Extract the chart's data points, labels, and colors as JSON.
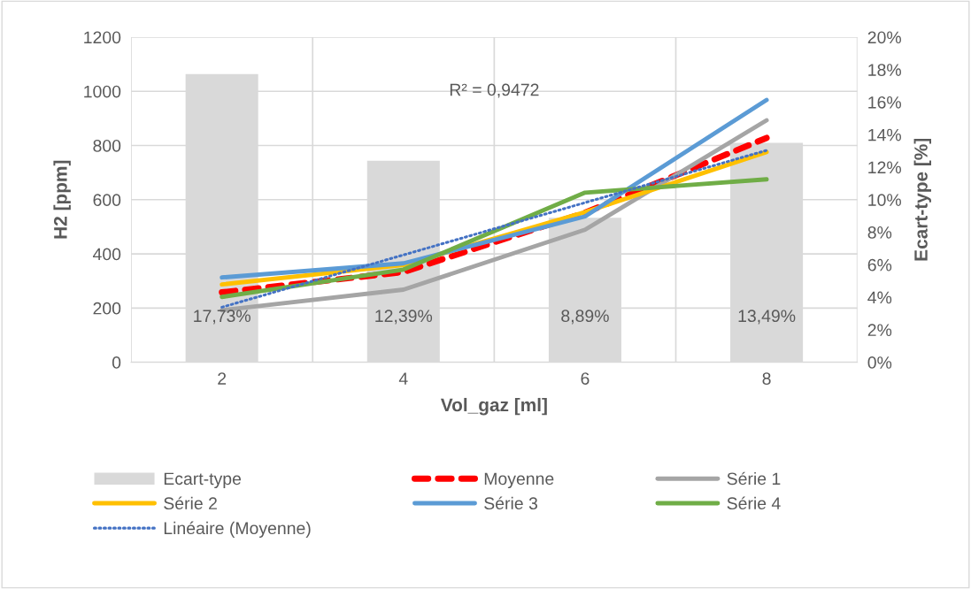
{
  "chart_data": {
    "type": "line",
    "xlabel": "Vol_gaz [ml]",
    "ylabel": "H2 [ppm]",
    "y2label": "Ecart-type [%]",
    "categories": [
      "2",
      "4",
      "6",
      "8"
    ],
    "series": [
      {
        "name": "Ecart-type",
        "type": "bar",
        "axis": "y2",
        "color": "#d9d9d9",
        "values": [
          17.73,
          12.39,
          8.89,
          13.49
        ],
        "value_labels": [
          "17,73%",
          "12,39%",
          "8,89%",
          "13,49%"
        ]
      },
      {
        "name": "Moyenne",
        "color": "#ff0000",
        "line_style": "dashed",
        "values": [
          258,
          333,
          552,
          828
        ]
      },
      {
        "name": "Série 1",
        "color": "#a5a5a5",
        "line_style": "solid",
        "values": [
          192,
          268,
          489,
          893
        ]
      },
      {
        "name": "Série 2",
        "color": "#ffc000",
        "line_style": "solid",
        "values": [
          287,
          359,
          554,
          776
        ]
      },
      {
        "name": "Série 3",
        "color": "#5b9bd5",
        "line_style": "solid",
        "values": [
          313,
          365,
          538,
          968
        ]
      },
      {
        "name": "Série 4",
        "color": "#70ad47",
        "line_style": "solid",
        "values": [
          241,
          342,
          626,
          675
        ]
      },
      {
        "name": "Linéaire (Moyenne)",
        "color": "#4472c4",
        "line_style": "dotted",
        "values": [
          203,
          396,
          589,
          782
        ]
      }
    ],
    "ylim": [
      0,
      1200
    ],
    "yticks": [
      0,
      200,
      400,
      600,
      800,
      1000,
      1200
    ],
    "y2lim": [
      0,
      20
    ],
    "y2ticks": [
      {
        "value": 0,
        "label": "0%"
      },
      {
        "value": 2,
        "label": "2%"
      },
      {
        "value": 4,
        "label": "4%"
      },
      {
        "value": 6,
        "label": "6%"
      },
      {
        "value": 8,
        "label": "8%"
      },
      {
        "value": 10,
        "label": "10%"
      },
      {
        "value": 12,
        "label": "12%"
      },
      {
        "value": 14,
        "label": "14%"
      },
      {
        "value": 16,
        "label": "16%"
      },
      {
        "value": 18,
        "label": "18%"
      },
      {
        "value": 20,
        "label": "20%"
      }
    ],
    "annotations": [
      "R² = 0,9472"
    ],
    "grid": true,
    "legend": "bottom",
    "marker": "none"
  }
}
